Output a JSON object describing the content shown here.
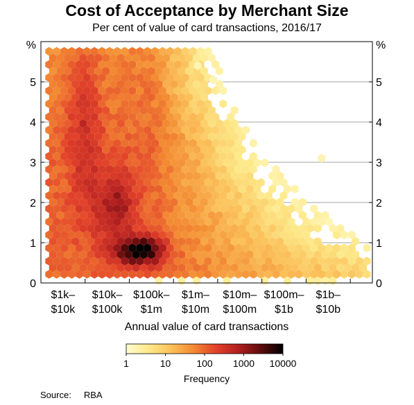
{
  "title": "Cost of Acceptance by Merchant Size",
  "subtitle": "Per cent of value of card transactions, 2016/17",
  "source_label": "Source:",
  "source_value": "RBA",
  "chart_data": {
    "type": "heatmap",
    "title": "Cost of Acceptance by Merchant Size",
    "subtitle": "Per cent of value of card transactions, 2016/17",
    "xlabel": "Annual value of card transactions",
    "ylabel": "%",
    "ylim": [
      0,
      6
    ],
    "yticks": [
      0,
      1,
      2,
      3,
      4,
      5
    ],
    "xlim": [
      3,
      10.5
    ],
    "xcategories": [
      {
        "line1": "$1k–",
        "line2": "$10k",
        "log_low": 3,
        "log_high": 4
      },
      {
        "line1": "$10k–",
        "line2": "$100k",
        "log_low": 4,
        "log_high": 5
      },
      {
        "line1": "$100k–",
        "line2": "$1m",
        "log_low": 5,
        "log_high": 6
      },
      {
        "line1": "$1m–",
        "line2": "$10m",
        "log_low": 6,
        "log_high": 7
      },
      {
        "line1": "$10m–",
        "line2": "$100m",
        "log_low": 7,
        "log_high": 8
      },
      {
        "line1": "$100m–",
        "line2": "$1b",
        "log_low": 8,
        "log_high": 9
      },
      {
        "line1": "$1b–",
        "line2": "$10b",
        "log_low": 9,
        "log_high": 10
      }
    ],
    "grid": true,
    "colorbar": {
      "label": "Frequency",
      "ticks": [
        "1",
        "10",
        "100",
        "1000",
        "10000"
      ],
      "range": [
        1,
        10000
      ],
      "colors": [
        "#fffbd0",
        "#fde98a",
        "#fbc15a",
        "#f38a32",
        "#e2422a",
        "#b31f20",
        "#5e0b0c",
        "#000000"
      ]
    },
    "density_peak": {
      "log_value": 5.25,
      "percent": 0.8,
      "frequency": 10000
    },
    "isolated_points": [
      {
        "log_value": 9.35,
        "percent": 3.1
      },
      {
        "log_value": 6.55,
        "percent": 5.4
      },
      {
        "log_value": 6.9,
        "percent": 5.05
      }
    ]
  }
}
